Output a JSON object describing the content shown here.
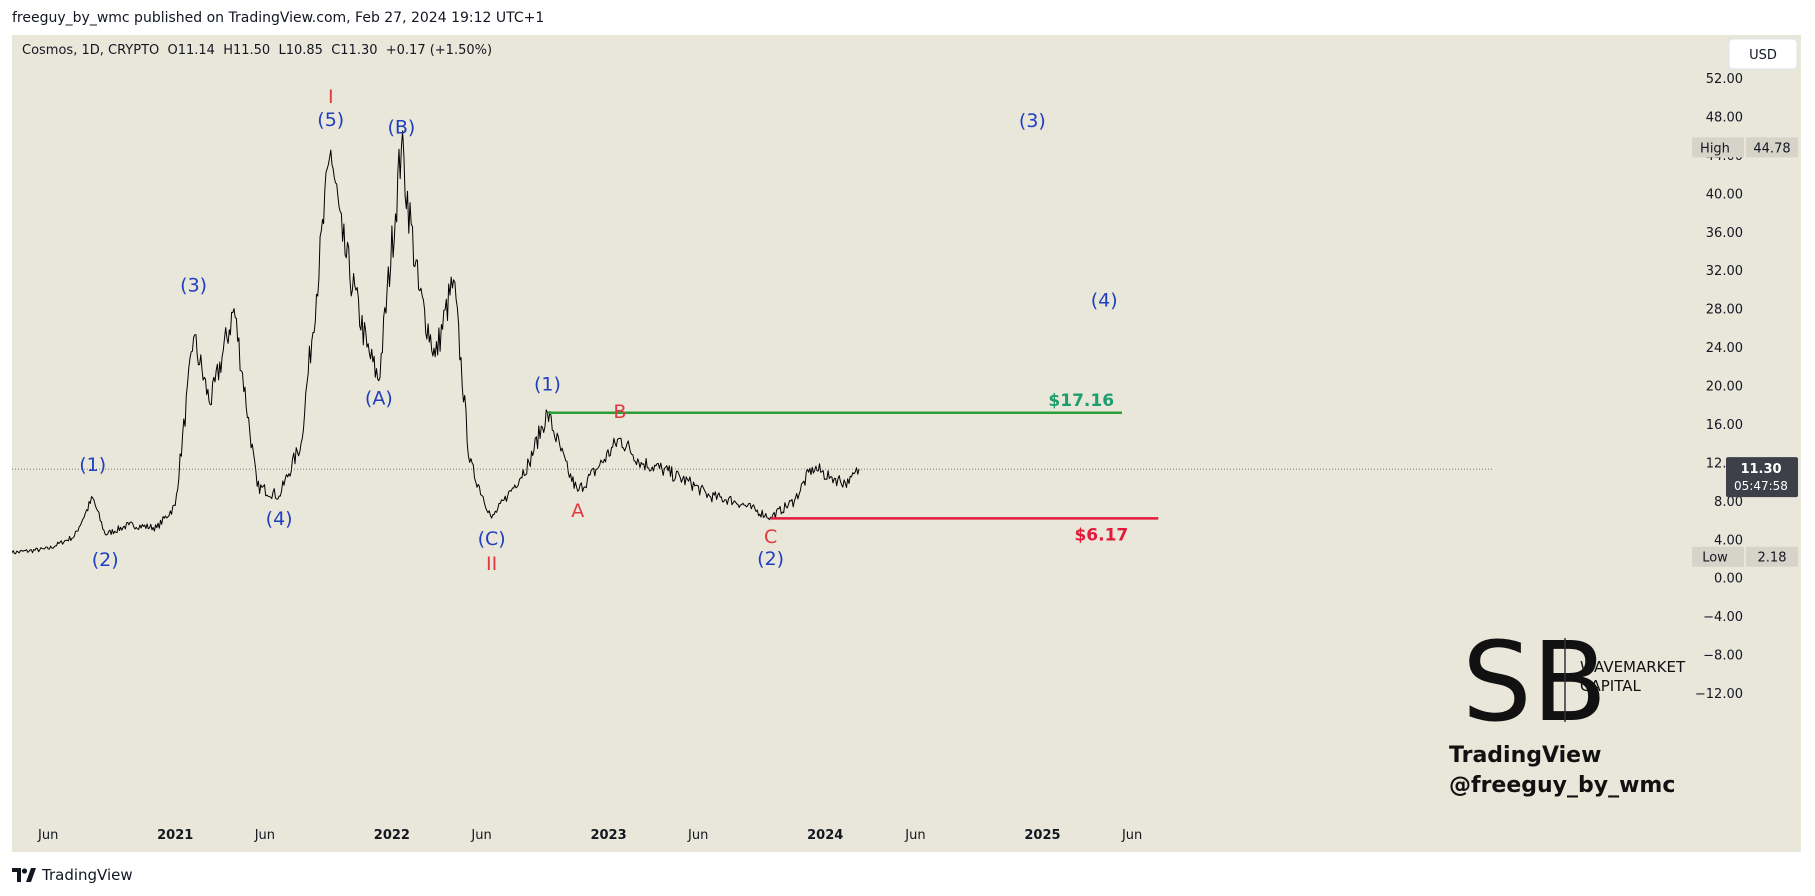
{
  "header": {
    "published_line": "freeguy_by_wmc published on TradingView.com, Feb 27, 2024 19:12 UTC+1"
  },
  "legend": {
    "symbol_line": "Cosmos, 1D, CRYPTO  O11.14  H11.50  L10.85  C11.30  +0.17 (+1.50%)"
  },
  "currency_button": "USD",
  "price_label": {
    "price": "11.30",
    "countdown": "05:47:58"
  },
  "high_label": {
    "title": "High",
    "value": "44.78"
  },
  "low_label": {
    "title": "Low",
    "value": "2.18"
  },
  "levels": {
    "resistance": "$17.16",
    "support": "$6.17"
  },
  "watermark": {
    "brand_line1": "WAVEMARKET",
    "brand_line2": "CAPITAL",
    "line1": "TradingView",
    "line2": "@freeguy_by_wmc"
  },
  "footer": {
    "logo_text": "TradingView"
  },
  "colors": {
    "background": "#e9e6da",
    "price": "#000000",
    "wave_blue": "#1f3fbf",
    "wave_red": "#e0393e",
    "level_green": "#2e9e3a",
    "level_red": "#e5193a",
    "text_green": "#1e9e6e"
  },
  "chart_data": {
    "type": "line",
    "series": [
      {
        "values": [
          [
            "2020-04-01",
            2.6
          ],
          [
            "2020-06-01",
            3.0
          ],
          [
            "2020-07-15",
            4.3
          ],
          [
            "2020-08-15",
            8.3
          ],
          [
            "2020-09-05",
            4.5
          ],
          [
            "2020-10-15",
            5.5
          ],
          [
            "2020-12-01",
            5.2
          ],
          [
            "2021-01-01",
            7.5
          ],
          [
            "2021-02-01",
            25.0
          ],
          [
            "2021-03-01",
            18.0
          ],
          [
            "2021-04-10",
            28.0
          ],
          [
            "2021-05-19",
            9.5
          ],
          [
            "2021-06-25",
            8.5
          ],
          [
            "2021-08-01",
            14.0
          ],
          [
            "2021-09-20",
            44.5
          ],
          [
            "2021-10-10",
            35.0
          ],
          [
            "2021-11-20",
            24.0
          ],
          [
            "2021-12-10",
            20.5
          ],
          [
            "2022-01-17",
            44.8
          ],
          [
            "2022-02-15",
            30.0
          ],
          [
            "2022-03-15",
            23.0
          ],
          [
            "2022-04-15",
            31.0
          ],
          [
            "2022-05-12",
            12.0
          ],
          [
            "2022-06-18",
            6.2
          ],
          [
            "2022-07-15",
            8.5
          ],
          [
            "2022-08-20",
            12.0
          ],
          [
            "2022-09-20",
            17.2
          ],
          [
            "2022-10-25",
            11.0
          ],
          [
            "2022-11-10",
            9.0
          ],
          [
            "2022-12-15",
            11.5
          ],
          [
            "2023-01-20",
            14.5
          ],
          [
            "2023-02-25",
            12.0
          ],
          [
            "2023-04-01",
            11.3
          ],
          [
            "2023-05-20",
            9.8
          ],
          [
            "2023-06-20",
            8.5
          ],
          [
            "2023-08-01",
            8.0
          ],
          [
            "2023-10-01",
            6.3
          ],
          [
            "2023-11-10",
            8.0
          ],
          [
            "2023-12-10",
            11.5
          ],
          [
            "2024-01-10",
            10.5
          ],
          [
            "2024-02-10",
            9.8
          ],
          [
            "2024-02-27",
            11.3
          ]
        ]
      }
    ],
    "x_ticks": [
      [
        "2020-06-01",
        "Jun"
      ],
      [
        "2021-01-01",
        "2021"
      ],
      [
        "2021-06-01",
        "Jun"
      ],
      [
        "2022-01-01",
        "2022"
      ],
      [
        "2022-06-01",
        "Jun"
      ],
      [
        "2023-01-01",
        "2023"
      ],
      [
        "2023-06-01",
        "Jun"
      ],
      [
        "2024-01-01",
        "2024"
      ],
      [
        "2024-06-01",
        "Jun"
      ],
      [
        "2025-01-01",
        "2025"
      ],
      [
        "2025-06-01",
        "Jun"
      ]
    ],
    "y_ticks": [
      "52.00",
      "48.00",
      "44.00",
      "40.00",
      "36.00",
      "32.00",
      "28.00",
      "24.00",
      "20.00",
      "16.00",
      "12.00",
      "8.00",
      "4.00",
      "0.00",
      "−4.00",
      "−8.00",
      "−12.00"
    ],
    "ylim": [
      -12,
      52
    ],
    "wave_labels": [
      {
        "text": "I",
        "date": "2021-09-20",
        "price": 49.4,
        "color": "red"
      },
      {
        "text": "(5)",
        "date": "2021-09-20",
        "price": 47.0,
        "color": "blue"
      },
      {
        "text": "(B)",
        "date": "2022-01-17",
        "price": 46.2,
        "color": "blue"
      },
      {
        "text": "(3)",
        "date": "2021-02-01",
        "price": 29.8,
        "color": "blue"
      },
      {
        "text": "(A)",
        "date": "2021-12-10",
        "price": 18.0,
        "color": "blue"
      },
      {
        "text": "(1)",
        "date": "2020-08-15",
        "price": 11.1,
        "color": "blue"
      },
      {
        "text": "(2)",
        "date": "2020-09-05",
        "price": 1.2,
        "color": "blue"
      },
      {
        "text": "(4)",
        "date": "2021-06-25",
        "price": 5.5,
        "color": "blue"
      },
      {
        "text": "(C)",
        "date": "2022-06-18",
        "price": 3.4,
        "color": "blue"
      },
      {
        "text": "II",
        "date": "2022-06-18",
        "price": 0.8,
        "color": "red"
      },
      {
        "text": "(1)",
        "date": "2022-09-20",
        "price": 19.5,
        "color": "blue"
      },
      {
        "text": "B",
        "date": "2023-01-20",
        "price": 16.6,
        "color": "red"
      },
      {
        "text": "A",
        "date": "2022-11-10",
        "price": 6.3,
        "color": "red"
      },
      {
        "text": "C",
        "date": "2023-10-01",
        "price": 3.6,
        "color": "red"
      },
      {
        "text": "(2)",
        "date": "2023-10-01",
        "price": 1.3,
        "color": "blue"
      },
      {
        "text": "(3)",
        "date": "2024-12-15",
        "price": 46.9,
        "color": "blue"
      },
      {
        "text": "(4)",
        "date": "2025-04-15",
        "price": 28.2,
        "color": "blue"
      }
    ],
    "horizontal_levels": [
      {
        "price": 17.16,
        "from": "2022-09-20",
        "to": "2025-05-15",
        "color": "green"
      },
      {
        "price": 6.17,
        "from": "2023-10-01",
        "to": "2025-07-15",
        "color": "red"
      }
    ]
  }
}
